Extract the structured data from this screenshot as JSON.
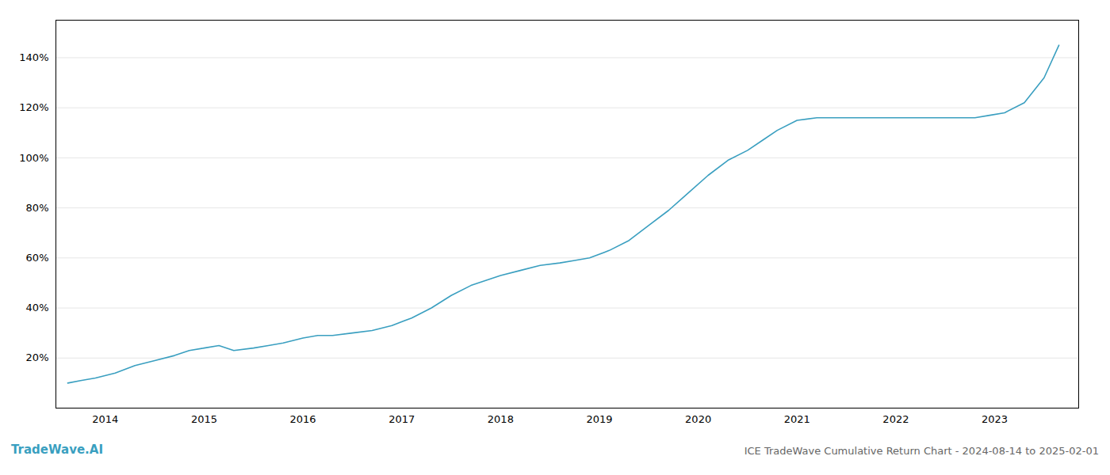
{
  "chart_data": {
    "type": "line",
    "title": "ICE TradeWave Cumulative Return Chart - 2024-08-14 to 2025-02-01",
    "annotations": [
      {
        "text": "TradeWave.AI"
      }
    ],
    "color": "#3a9fc0",
    "x": [
      2013.62,
      2013.75,
      2013.9,
      2014.1,
      2014.3,
      2014.5,
      2014.7,
      2014.85,
      2015.0,
      2015.15,
      2015.3,
      2015.5,
      2015.65,
      2015.8,
      2016.0,
      2016.15,
      2016.3,
      2016.5,
      2016.7,
      2016.9,
      2017.1,
      2017.3,
      2017.5,
      2017.7,
      2017.85,
      2018.0,
      2018.2,
      2018.4,
      2018.6,
      2018.75,
      2018.9,
      2019.1,
      2019.3,
      2019.5,
      2019.7,
      2019.9,
      2020.1,
      2020.3,
      2020.5,
      2020.65,
      2020.8,
      2021.0,
      2021.2,
      2021.4,
      2021.6,
      2021.8,
      2022.0,
      2022.2,
      2022.5,
      2022.65,
      2022.8,
      2022.95,
      2023.1,
      2023.3,
      2023.5,
      2023.65
    ],
    "values": [
      10,
      11,
      12,
      14,
      17,
      19,
      21,
      23,
      24,
      25,
      23,
      24,
      25,
      26,
      28,
      29,
      29,
      30,
      31,
      33,
      36,
      40,
      45,
      49,
      51,
      53,
      55,
      57,
      58,
      59,
      60,
      63,
      67,
      73,
      79,
      86,
      93,
      99,
      103,
      107,
      111,
      115,
      116,
      116,
      116,
      116,
      116,
      116,
      116,
      116,
      116,
      117,
      118,
      122,
      132,
      145
    ],
    "xlim": [
      2013.5,
      2023.85
    ],
    "xticks": [
      2014,
      2015,
      2016,
      2017,
      2018,
      2019,
      2020,
      2021,
      2022,
      2023
    ],
    "ylim": [
      0,
      155
    ],
    "yticks": [
      {
        "value": 20,
        "label": "20%"
      },
      {
        "value": 40,
        "label": "40%"
      },
      {
        "value": 60,
        "label": "60%"
      },
      {
        "value": 80,
        "label": "80%"
      },
      {
        "value": 100,
        "label": "100%"
      },
      {
        "value": 120,
        "label": "120%"
      },
      {
        "value": 140,
        "label": "140%"
      }
    ],
    "grid": "y"
  }
}
